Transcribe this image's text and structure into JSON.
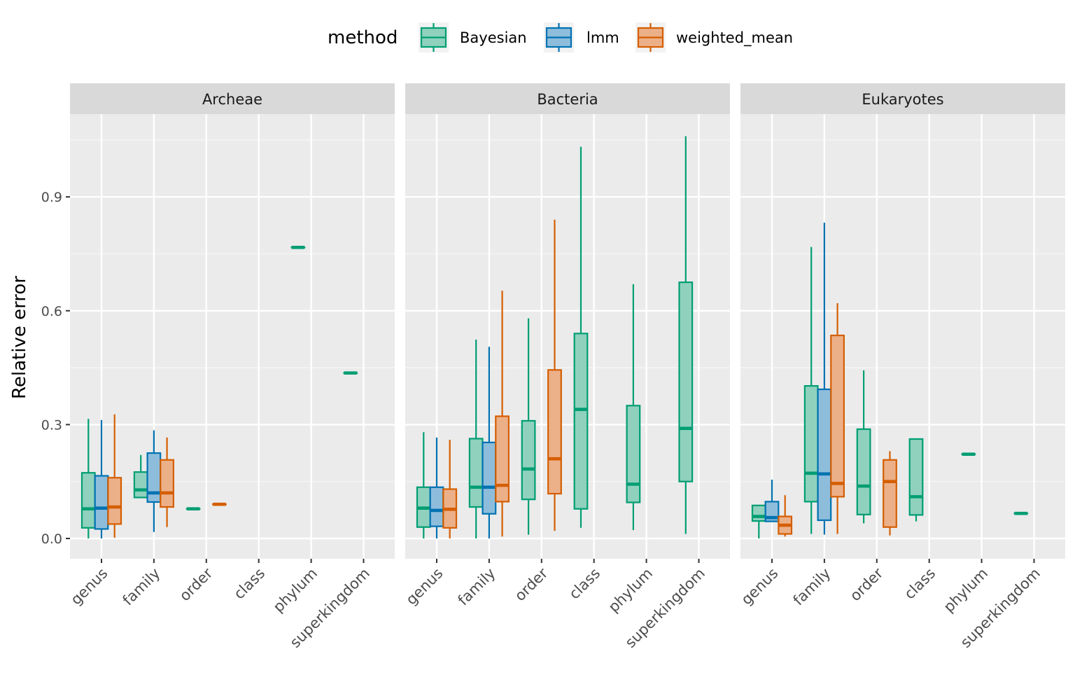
{
  "chart_data": {
    "type": "boxplot",
    "ylabel": "Relative error",
    "ylim": [
      -0.05,
      1.1
    ],
    "y_ticks": [
      0.0,
      0.3,
      0.6,
      0.9
    ],
    "y_tick_labels": [
      "0.0",
      "0.3",
      "0.6",
      "0.9"
    ],
    "categories": [
      "genus",
      "family",
      "order",
      "class",
      "phylum",
      "superkingdom"
    ],
    "legend": {
      "title": "method",
      "position": "top",
      "entries": [
        {
          "name": "Bayesian",
          "color": "#009E73",
          "fill": "#8fd1bd"
        },
        {
          "name": "lmm",
          "color": "#0072B2",
          "fill": "#8ebddc"
        },
        {
          "name": "weighted_mean",
          "color": "#D55E00",
          "fill": "#ecb089"
        }
      ]
    },
    "grid": true,
    "panels": [
      {
        "label": "Archeae",
        "boxes": [
          {
            "category": "genus",
            "method": "Bayesian",
            "min": 0.0,
            "q1": 0.028,
            "median": 0.078,
            "q3": 0.173,
            "max": 0.315
          },
          {
            "category": "genus",
            "method": "lmm",
            "min": 0.0,
            "q1": 0.025,
            "median": 0.08,
            "q3": 0.165,
            "max": 0.312
          },
          {
            "category": "genus",
            "method": "weighted_mean",
            "min": 0.002,
            "q1": 0.038,
            "median": 0.083,
            "q3": 0.16,
            "max": 0.327
          },
          {
            "category": "family",
            "method": "Bayesian",
            "min": 0.108,
            "q1": 0.108,
            "median": 0.128,
            "q3": 0.175,
            "max": 0.22
          },
          {
            "category": "family",
            "method": "lmm",
            "min": 0.017,
            "q1": 0.096,
            "median": 0.12,
            "q3": 0.225,
            "max": 0.285
          },
          {
            "category": "family",
            "method": "weighted_mean",
            "min": 0.03,
            "q1": 0.083,
            "median": 0.12,
            "q3": 0.207,
            "max": 0.266
          },
          {
            "category": "order",
            "method": "Bayesian",
            "min": 0.078,
            "q1": 0.078,
            "median": 0.078,
            "q3": 0.078,
            "max": 0.078
          },
          {
            "category": "order",
            "method": "weighted_mean",
            "min": 0.09,
            "q1": 0.09,
            "median": 0.09,
            "q3": 0.09,
            "max": 0.09
          },
          {
            "category": "phylum",
            "method": "Bayesian",
            "min": 0.767,
            "q1": 0.767,
            "median": 0.767,
            "q3": 0.767,
            "max": 0.767
          },
          {
            "category": "superkingdom",
            "method": "Bayesian",
            "min": 0.436,
            "q1": 0.436,
            "median": 0.436,
            "q3": 0.436,
            "max": 0.436
          }
        ]
      },
      {
        "label": "Bacteria",
        "boxes": [
          {
            "category": "genus",
            "method": "Bayesian",
            "min": 0.0,
            "q1": 0.03,
            "median": 0.08,
            "q3": 0.135,
            "max": 0.28
          },
          {
            "category": "genus",
            "method": "lmm",
            "min": 0.0,
            "q1": 0.032,
            "median": 0.074,
            "q3": 0.135,
            "max": 0.266
          },
          {
            "category": "genus",
            "method": "weighted_mean",
            "min": 0.0,
            "q1": 0.028,
            "median": 0.077,
            "q3": 0.13,
            "max": 0.26
          },
          {
            "category": "family",
            "method": "Bayesian",
            "min": 0.0,
            "q1": 0.083,
            "median": 0.135,
            "q3": 0.263,
            "max": 0.524
          },
          {
            "category": "family",
            "method": "lmm",
            "min": 0.0,
            "q1": 0.065,
            "median": 0.135,
            "q3": 0.253,
            "max": 0.505
          },
          {
            "category": "family",
            "method": "weighted_mean",
            "min": 0.005,
            "q1": 0.097,
            "median": 0.14,
            "q3": 0.322,
            "max": 0.653
          },
          {
            "category": "order",
            "method": "Bayesian",
            "min": 0.01,
            "q1": 0.103,
            "median": 0.183,
            "q3": 0.31,
            "max": 0.58
          },
          {
            "category": "order",
            "method": "weighted_mean",
            "min": 0.02,
            "q1": 0.118,
            "median": 0.21,
            "q3": 0.444,
            "max": 0.84
          },
          {
            "category": "class",
            "method": "Bayesian",
            "min": 0.028,
            "q1": 0.078,
            "median": 0.34,
            "q3": 0.54,
            "max": 1.032
          },
          {
            "category": "phylum",
            "method": "Bayesian",
            "min": 0.022,
            "q1": 0.095,
            "median": 0.143,
            "q3": 0.35,
            "max": 0.67
          },
          {
            "category": "superkingdom",
            "method": "Bayesian",
            "min": 0.012,
            "q1": 0.15,
            "median": 0.29,
            "q3": 0.675,
            "max": 1.06
          }
        ]
      },
      {
        "label": "Eukaryotes",
        "boxes": [
          {
            "category": "genus",
            "method": "Bayesian",
            "min": 0.0,
            "q1": 0.046,
            "median": 0.058,
            "q3": 0.087,
            "max": 0.087
          },
          {
            "category": "genus",
            "method": "lmm",
            "min": 0.045,
            "q1": 0.045,
            "median": 0.055,
            "q3": 0.097,
            "max": 0.155
          },
          {
            "category": "genus",
            "method": "weighted_mean",
            "min": 0.005,
            "q1": 0.012,
            "median": 0.035,
            "q3": 0.058,
            "max": 0.114
          },
          {
            "category": "family",
            "method": "Bayesian",
            "min": 0.012,
            "q1": 0.097,
            "median": 0.172,
            "q3": 0.402,
            "max": 0.768
          },
          {
            "category": "family",
            "method": "lmm",
            "min": 0.01,
            "q1": 0.048,
            "median": 0.17,
            "q3": 0.393,
            "max": 0.832
          },
          {
            "category": "family",
            "method": "weighted_mean",
            "min": 0.012,
            "q1": 0.11,
            "median": 0.145,
            "q3": 0.535,
            "max": 0.62
          },
          {
            "category": "order",
            "method": "Bayesian",
            "min": 0.04,
            "q1": 0.063,
            "median": 0.138,
            "q3": 0.288,
            "max": 0.443
          },
          {
            "category": "order",
            "method": "weighted_mean",
            "min": 0.008,
            "q1": 0.03,
            "median": 0.15,
            "q3": 0.207,
            "max": 0.23
          },
          {
            "category": "class",
            "method": "Bayesian",
            "min": 0.045,
            "q1": 0.062,
            "median": 0.11,
            "q3": 0.262,
            "max": 0.262
          },
          {
            "category": "phylum",
            "method": "Bayesian",
            "min": 0.222,
            "q1": 0.222,
            "median": 0.222,
            "q3": 0.222,
            "max": 0.222
          },
          {
            "category": "superkingdom",
            "method": "Bayesian",
            "min": 0.066,
            "q1": 0.066,
            "median": 0.066,
            "q3": 0.066,
            "max": 0.066
          }
        ]
      }
    ]
  }
}
